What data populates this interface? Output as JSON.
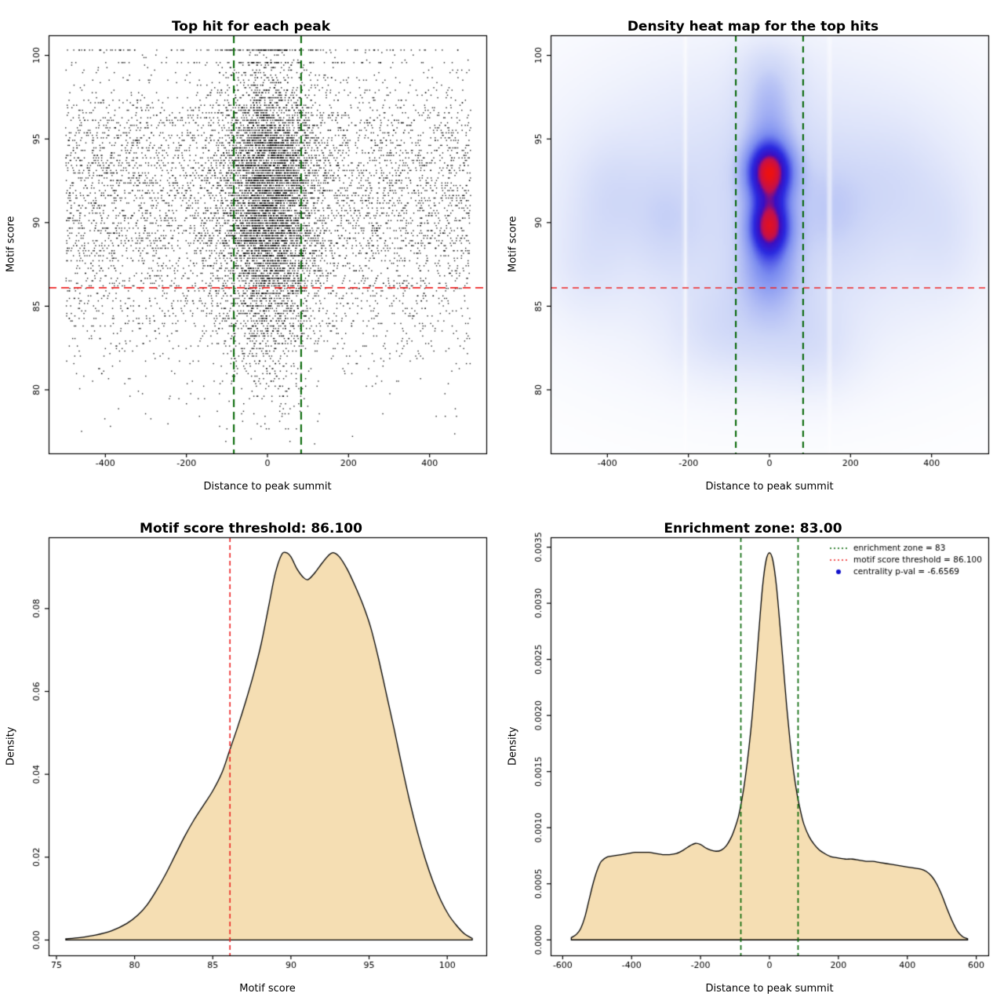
{
  "figure": {
    "background": "#ffffff"
  },
  "colors": {
    "threshold_red": "#ee2222",
    "zone_green": "#006400",
    "wheat_fill": "#f5deb3",
    "point_black": "#000000",
    "legend_point_blue": "#1111cc"
  },
  "chart_data": [
    {
      "type": "scatter",
      "title": "Top hit for each peak",
      "xlabel": "Distance to peak summit",
      "ylabel": "Motif score",
      "xlim": [
        -540,
        540
      ],
      "ylim": [
        76.2,
        101.2
      ],
      "xticks": [
        -400,
        -200,
        0,
        200,
        400
      ],
      "xtick_labels": [
        "-400",
        "-200",
        "0",
        "200",
        "400"
      ],
      "yticks": [
        80,
        85,
        90,
        95,
        100
      ],
      "ytick_labels": [
        "80",
        "85",
        "90",
        "95",
        "100"
      ],
      "threshold_line": {
        "orient": "h",
        "value": 86.1,
        "color": "#ee2222",
        "dash": [
          10,
          6
        ],
        "width": 1.8
      },
      "zone_lines": {
        "orient": "v",
        "values": [
          -83,
          83
        ],
        "color": "#006400",
        "dash": [
          10,
          6
        ],
        "width": 2
      },
      "points": {
        "n": 11000,
        "seed": 7,
        "x_uniform_frac": 0.52,
        "x_uniform_range": [
          -500,
          500
        ],
        "x_center_sd": 60,
        "y_quantize_step": 0.15,
        "y_cap": 100.35,
        "cap_row_frac": 0.012,
        "row99_frac": 0.008,
        "color": "#000000"
      }
    },
    {
      "type": "heatmap",
      "title": "Density heat map for the top hits",
      "xlabel": "Distance to peak summit",
      "ylabel": "Motif score",
      "xlim": [
        -540,
        540
      ],
      "ylim": [
        76.2,
        101.2
      ],
      "xticks": [
        -400,
        -200,
        0,
        200,
        400
      ],
      "xtick_labels": [
        "-400",
        "-200",
        "0",
        "200",
        "400"
      ],
      "yticks": [
        80,
        85,
        90,
        95,
        100
      ],
      "ytick_labels": [
        "80",
        "85",
        "90",
        "95",
        "100"
      ],
      "threshold_line": {
        "orient": "h",
        "value": 86.1,
        "color": "#ee2222",
        "dash": [
          8,
          6
        ],
        "width": 1.6
      },
      "zone_lines": {
        "orient": "v",
        "values": [
          -83,
          83
        ],
        "color": "#006400",
        "dash": [
          8,
          6
        ],
        "width": 2
      },
      "kernels": [
        [
          0.2,
          0,
          91,
          330,
          5.5
        ],
        [
          0.1,
          -390,
          91.5,
          65,
          2.2
        ],
        [
          0.09,
          -255,
          90.2,
          50,
          2.0
        ],
        [
          0.09,
          155,
          90.8,
          60,
          2.2
        ],
        [
          0.07,
          310,
          92.1,
          75,
          2.4
        ],
        [
          0.06,
          430,
          89.5,
          55,
          2.4
        ],
        [
          0.06,
          -450,
          87.5,
          60,
          2.0
        ],
        [
          0.22,
          0,
          96.0,
          45,
          1.7
        ],
        [
          0.13,
          0,
          98.8,
          50,
          1.4
        ],
        [
          1.0,
          0,
          93.0,
          40,
          1.25
        ],
        [
          0.9,
          0,
          89.8,
          36,
          1.2
        ],
        [
          0.3,
          0,
          87.2,
          48,
          1.5
        ],
        [
          0.13,
          0,
          84.0,
          85,
          2.0
        ],
        [
          0.07,
          -140,
          83.5,
          70,
          1.8
        ],
        [
          0.07,
          120,
          82.5,
          70,
          1.8
        ]
      ],
      "white_gaps": [
        -208,
        148
      ],
      "ramp": [
        [
          0,
          "#ffffff"
        ],
        [
          0.3,
          "#cdd6f7"
        ],
        [
          0.55,
          "#7b8cf0"
        ],
        [
          0.72,
          "#2a2ae0"
        ],
        [
          0.84,
          "#3a0ec2"
        ],
        [
          0.9,
          "#c01050"
        ],
        [
          1,
          "#ee1111"
        ]
      ],
      "gamma": 0.7
    },
    {
      "type": "density",
      "title": "Motif score threshold: 86.100",
      "xlabel": "Motif score",
      "ylabel": "Density",
      "xlim": [
        74.5,
        102.5
      ],
      "ylim": [
        -0.0037,
        0.0972
      ],
      "xticks": [
        75,
        80,
        85,
        90,
        95,
        100
      ],
      "xtick_labels": [
        "75",
        "80",
        "85",
        "90",
        "95",
        "100"
      ],
      "yticks": [
        0,
        0.02,
        0.04,
        0.06,
        0.08
      ],
      "ytick_labels": [
        "0.00",
        "0.02",
        "0.04",
        "0.06",
        "0.08"
      ],
      "fill": "#f5deb3",
      "vlines": {
        "orient": "v",
        "values": [
          86.1
        ],
        "color": "#ee2222",
        "dash": [
          6,
          4
        ],
        "width": 1.6
      },
      "curve": [
        [
          75.6,
          0.0003
        ],
        [
          76.5,
          0.0006
        ],
        [
          77.5,
          0.0012
        ],
        [
          78.5,
          0.0022
        ],
        [
          79.5,
          0.004
        ],
        [
          80.2,
          0.006
        ],
        [
          80.8,
          0.0085
        ],
        [
          81.4,
          0.012
        ],
        [
          82,
          0.016
        ],
        [
          82.6,
          0.0205
        ],
        [
          83.2,
          0.025
        ],
        [
          83.8,
          0.029
        ],
        [
          84.4,
          0.0325
        ],
        [
          85,
          0.036
        ],
        [
          85.6,
          0.0405
        ],
        [
          86.1,
          0.046
        ],
        [
          86.6,
          0.0515
        ],
        [
          87.1,
          0.0575
        ],
        [
          87.6,
          0.064
        ],
        [
          88.1,
          0.0715
        ],
        [
          88.6,
          0.081
        ],
        [
          89,
          0.0885
        ],
        [
          89.4,
          0.093
        ],
        [
          89.7,
          0.0935
        ],
        [
          90,
          0.0925
        ],
        [
          90.4,
          0.0895
        ],
        [
          90.8,
          0.0875
        ],
        [
          91.1,
          0.087
        ],
        [
          91.5,
          0.0885
        ],
        [
          92,
          0.091
        ],
        [
          92.4,
          0.0928
        ],
        [
          92.7,
          0.0935
        ],
        [
          93.1,
          0.0925
        ],
        [
          93.6,
          0.0895
        ],
        [
          94.1,
          0.0855
        ],
        [
          94.6,
          0.081
        ],
        [
          95.1,
          0.0755
        ],
        [
          95.6,
          0.068
        ],
        [
          96.1,
          0.0595
        ],
        [
          96.6,
          0.051
        ],
        [
          97.1,
          0.042
        ],
        [
          97.6,
          0.0335
        ],
        [
          98.1,
          0.026
        ],
        [
          98.6,
          0.0195
        ],
        [
          99.1,
          0.014
        ],
        [
          99.6,
          0.0095
        ],
        [
          100.1,
          0.006
        ],
        [
          100.6,
          0.0035
        ],
        [
          101.1,
          0.0015
        ],
        [
          101.6,
          0.0004
        ]
      ]
    },
    {
      "type": "density",
      "title": "Enrichment zone: 83.00",
      "xlabel": "Distance to peak summit",
      "ylabel": "Density",
      "xlim": [
        -635,
        635
      ],
      "ylim": [
        -0.000138,
        0.003588
      ],
      "xticks": [
        -600,
        -400,
        -200,
        0,
        200,
        400,
        600
      ],
      "xtick_labels": [
        "-600",
        "-400",
        "-200",
        "0",
        "200",
        "400",
        "600"
      ],
      "yticks": [
        0,
        0.0005,
        0.001,
        0.0015,
        0.002,
        0.0025,
        0.003,
        0.0035
      ],
      "ytick_labels": [
        "0.0000",
        "0.0005",
        "0.0010",
        "0.0015",
        "0.0020",
        "0.0025",
        "0.0030",
        "0.0035"
      ],
      "fill": "#f5deb3",
      "vlines": {
        "orient": "v",
        "values": [
          -83,
          83
        ],
        "color": "#006400",
        "dash": [
          6,
          4
        ],
        "width": 1.6
      },
      "curve": [
        [
          -575,
          2e-05
        ],
        [
          -560,
          5e-05
        ],
        [
          -548,
          0.0001
        ],
        [
          -536,
          0.0002
        ],
        [
          -524,
          0.00035
        ],
        [
          -512,
          0.0005
        ],
        [
          -500,
          0.00062
        ],
        [
          -488,
          0.0007
        ],
        [
          -470,
          0.00074
        ],
        [
          -450,
          0.00075
        ],
        [
          -430,
          0.00076
        ],
        [
          -410,
          0.00077
        ],
        [
          -390,
          0.00078
        ],
        [
          -370,
          0.00078
        ],
        [
          -350,
          0.00078
        ],
        [
          -330,
          0.00077
        ],
        [
          -310,
          0.00076
        ],
        [
          -290,
          0.00076
        ],
        [
          -270,
          0.00077
        ],
        [
          -250,
          0.0008
        ],
        [
          -230,
          0.00084
        ],
        [
          -215,
          0.00086
        ],
        [
          -200,
          0.00085
        ],
        [
          -185,
          0.00082
        ],
        [
          -170,
          0.0008
        ],
        [
          -155,
          0.00079
        ],
        [
          -140,
          0.0008
        ],
        [
          -125,
          0.00084
        ],
        [
          -110,
          0.00092
        ],
        [
          -100,
          0.001
        ],
        [
          -90,
          0.0011
        ],
        [
          -80,
          0.00125
        ],
        [
          -70,
          0.00145
        ],
        [
          -60,
          0.0017
        ],
        [
          -50,
          0.002
        ],
        [
          -40,
          0.00238
        ],
        [
          -30,
          0.00278
        ],
        [
          -20,
          0.00315
        ],
        [
          -10,
          0.00338
        ],
        [
          0,
          0.00345
        ],
        [
          10,
          0.00338
        ],
        [
          20,
          0.00316
        ],
        [
          30,
          0.00282
        ],
        [
          40,
          0.00245
        ],
        [
          50,
          0.00208
        ],
        [
          60,
          0.00176
        ],
        [
          70,
          0.0015
        ],
        [
          80,
          0.0013
        ],
        [
          90,
          0.00115
        ],
        [
          100,
          0.00103
        ],
        [
          115,
          0.00092
        ],
        [
          130,
          0.00085
        ],
        [
          145,
          0.0008
        ],
        [
          160,
          0.00077
        ],
        [
          180,
          0.00074
        ],
        [
          200,
          0.00073
        ],
        [
          220,
          0.00072
        ],
        [
          240,
          0.00072
        ],
        [
          260,
          0.00071
        ],
        [
          280,
          0.0007
        ],
        [
          300,
          0.0007
        ],
        [
          320,
          0.00069
        ],
        [
          340,
          0.00068
        ],
        [
          360,
          0.00067
        ],
        [
          380,
          0.00066
        ],
        [
          400,
          0.00065
        ],
        [
          420,
          0.00064
        ],
        [
          440,
          0.00063
        ],
        [
          455,
          0.00061
        ],
        [
          470,
          0.00057
        ],
        [
          485,
          0.0005
        ],
        [
          500,
          0.0004
        ],
        [
          515,
          0.00028
        ],
        [
          530,
          0.00017
        ],
        [
          545,
          8e-05
        ],
        [
          560,
          3e-05
        ],
        [
          575,
          1e-05
        ]
      ],
      "legend": {
        "items": [
          {
            "marker": "dotted-line",
            "color": "#006400",
            "label": "enrichment zone = 83"
          },
          {
            "marker": "dotted-line",
            "color": "#ee2222",
            "label": "motif score threshold = 86.100"
          },
          {
            "marker": "point",
            "color": "#1111cc",
            "label": "centrality p-val = -6.6569"
          }
        ]
      }
    }
  ]
}
